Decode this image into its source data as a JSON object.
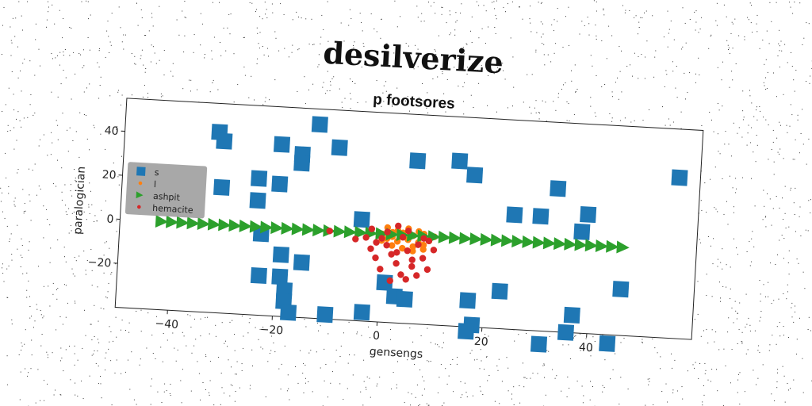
{
  "chart_data": {
    "type": "scatter",
    "title": "desilverize",
    "subtitle": "p footsores",
    "xlabel": "gensengs",
    "ylabel": "paralogician",
    "xlim": [
      -50,
      60
    ],
    "ylim": [
      -40,
      55
    ],
    "xticks": [
      -40,
      -20,
      0,
      20,
      40
    ],
    "yticks": [
      40,
      20,
      0,
      -20
    ],
    "grid": false,
    "legend_position": "center-left",
    "series": [
      {
        "name": "s",
        "marker": "square",
        "color": "#1f77b4",
        "points": [
          [
            -32,
            42
          ],
          [
            -31,
            38
          ],
          [
            -31,
            17
          ],
          [
            -24,
            22
          ],
          [
            -24,
            12
          ],
          [
            -20,
            38
          ],
          [
            -20,
            20
          ],
          [
            -19,
            -12
          ],
          [
            -16,
            34
          ],
          [
            -16,
            30
          ],
          [
            -13,
            48
          ],
          [
            -9,
            38
          ],
          [
            -4,
            6
          ],
          [
            -3,
            -36
          ],
          [
            -10,
            -38
          ],
          [
            -19,
            -22
          ],
          [
            -23,
            -22
          ],
          [
            -18,
            -28
          ],
          [
            -18,
            -33
          ],
          [
            -17,
            -38
          ],
          [
            -15,
            -15
          ],
          [
            -23,
            -3
          ],
          [
            1,
            -22
          ],
          [
            3,
            -28
          ],
          [
            5,
            -29
          ],
          [
            6,
            34
          ],
          [
            14,
            35
          ],
          [
            17,
            29
          ],
          [
            17,
            -28
          ],
          [
            18,
            -39
          ],
          [
            17,
            -42
          ],
          [
            23,
            -23
          ],
          [
            25,
            12
          ],
          [
            30,
            12
          ],
          [
            33,
            25
          ],
          [
            37,
            -32
          ],
          [
            39,
            14
          ],
          [
            38,
            6
          ],
          [
            36,
            -40
          ],
          [
            31,
            -46
          ],
          [
            46,
            -19
          ],
          [
            44,
            -44
          ],
          [
            56,
            33
          ]
        ]
      },
      {
        "name": "l",
        "marker": "circle",
        "color": "#ff7f0e",
        "points": [
          [
            0,
            0
          ],
          [
            2,
            1
          ],
          [
            4,
            1
          ],
          [
            6,
            0
          ],
          [
            8,
            1
          ],
          [
            1,
            -2
          ],
          [
            3,
            -3
          ],
          [
            5,
            -2
          ],
          [
            7,
            -3
          ],
          [
            9,
            -2
          ],
          [
            2,
            -5
          ],
          [
            4,
            -6
          ],
          [
            6,
            -5
          ],
          [
            8,
            -6
          ],
          [
            0,
            -3
          ],
          [
            3,
            2
          ],
          [
            5,
            3
          ],
          [
            7,
            2
          ],
          [
            10,
            0
          ],
          [
            1,
            3
          ],
          [
            4,
            -1
          ],
          [
            6,
            -7
          ],
          [
            8,
            -4
          ],
          [
            2,
            -1
          ]
        ]
      },
      {
        "name": "ashpit",
        "marker": "triangle-right",
        "color": "#2ca02c",
        "points": [
          [
            -42,
            0
          ],
          [
            -40,
            0
          ],
          [
            -38,
            0
          ],
          [
            -36,
            0
          ],
          [
            -34,
            0
          ],
          [
            -32,
            0
          ],
          [
            -30,
            0
          ],
          [
            -28,
            0
          ],
          [
            -26,
            0
          ],
          [
            -24,
            0
          ],
          [
            -22,
            0
          ],
          [
            -20,
            0
          ],
          [
            -18,
            0
          ],
          [
            -16,
            0
          ],
          [
            -14,
            0
          ],
          [
            -12,
            0
          ],
          [
            -10,
            0
          ],
          [
            -8,
            0
          ],
          [
            -6,
            0
          ],
          [
            -4,
            0
          ],
          [
            -2,
            0
          ],
          [
            0,
            0
          ],
          [
            2,
            0
          ],
          [
            4,
            0
          ],
          [
            6,
            0
          ],
          [
            8,
            0
          ],
          [
            10,
            0
          ],
          [
            12,
            0
          ],
          [
            14,
            0
          ],
          [
            16,
            0
          ],
          [
            18,
            0
          ],
          [
            20,
            0
          ],
          [
            22,
            0
          ],
          [
            24,
            0
          ],
          [
            26,
            0
          ],
          [
            28,
            0
          ],
          [
            30,
            0
          ],
          [
            32,
            0
          ],
          [
            34,
            0
          ],
          [
            36,
            0
          ],
          [
            38,
            0
          ],
          [
            40,
            0
          ],
          [
            42,
            0
          ],
          [
            44,
            0
          ],
          [
            46,
            0
          ]
        ]
      },
      {
        "name": "hemacite",
        "marker": "circle",
        "color": "#d62728",
        "points": [
          [
            -10,
            0
          ],
          [
            -5,
            -3
          ],
          [
            -3,
            -2
          ],
          [
            -2,
            -7
          ],
          [
            -1,
            -11
          ],
          [
            0,
            -16
          ],
          [
            1,
            -5
          ],
          [
            2,
            -9
          ],
          [
            3,
            -13
          ],
          [
            3,
            4
          ],
          [
            4,
            -1
          ],
          [
            4,
            -18
          ],
          [
            5,
            -7
          ],
          [
            5,
            2
          ],
          [
            6,
            -14
          ],
          [
            7,
            -4
          ],
          [
            7,
            -18
          ],
          [
            8,
            -10
          ],
          [
            9,
            -2
          ],
          [
            9,
            -15
          ],
          [
            10,
            -6
          ],
          [
            1,
            1
          ],
          [
            0,
            -2
          ],
          [
            -1,
            -4
          ],
          [
            2,
            -21
          ],
          [
            5,
            -20
          ],
          [
            6,
            -11
          ],
          [
            -2,
            2
          ],
          [
            3,
            -8
          ],
          [
            8,
            -1
          ]
        ]
      }
    ]
  }
}
